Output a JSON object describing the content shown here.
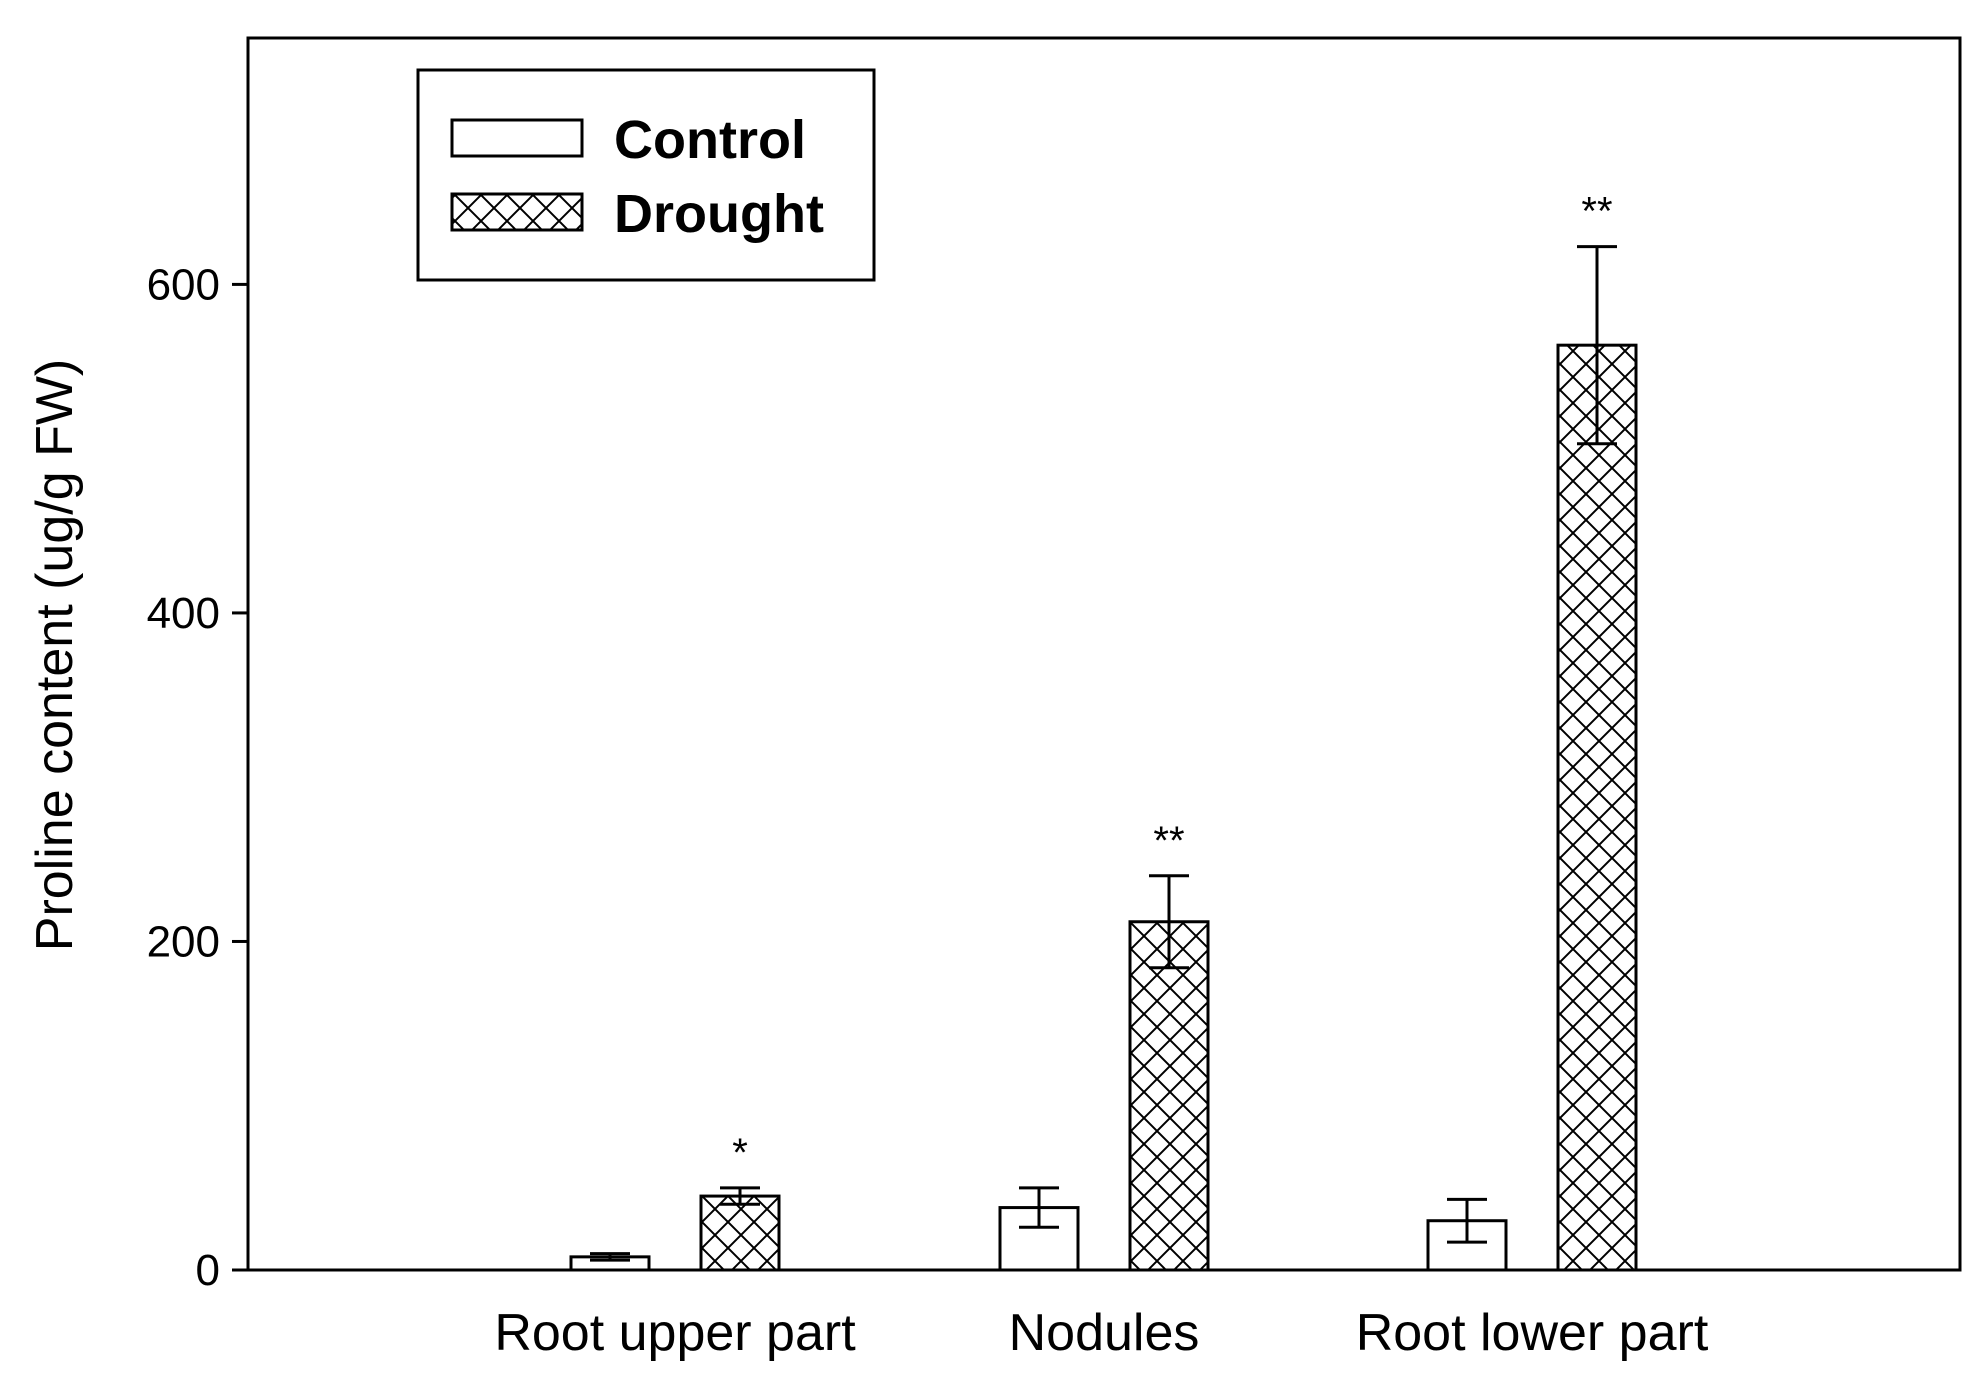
{
  "chart_data": {
    "type": "bar",
    "title": "",
    "xlabel": "",
    "ylabel": "Proline content (ug/g FW)",
    "ylim": [
      0,
      750
    ],
    "yticks": [
      0,
      200,
      400,
      600
    ],
    "categories": [
      "Root upper part",
      "Nodules",
      "Root lower part"
    ],
    "series": [
      {
        "name": "Control",
        "pattern": "open",
        "values": [
          8,
          38,
          30
        ],
        "errors": [
          2,
          12,
          13
        ],
        "significance": [
          "",
          "",
          ""
        ]
      },
      {
        "name": "Drought",
        "pattern": "crosshatch",
        "values": [
          45,
          212,
          563
        ],
        "errors": [
          5,
          28,
          60
        ],
        "significance": [
          "*",
          "**",
          "**"
        ]
      }
    ],
    "legend_position": "top-left",
    "grid": false,
    "colors": {
      "bar_fill": "#ffffff",
      "stroke": "#000000"
    }
  }
}
